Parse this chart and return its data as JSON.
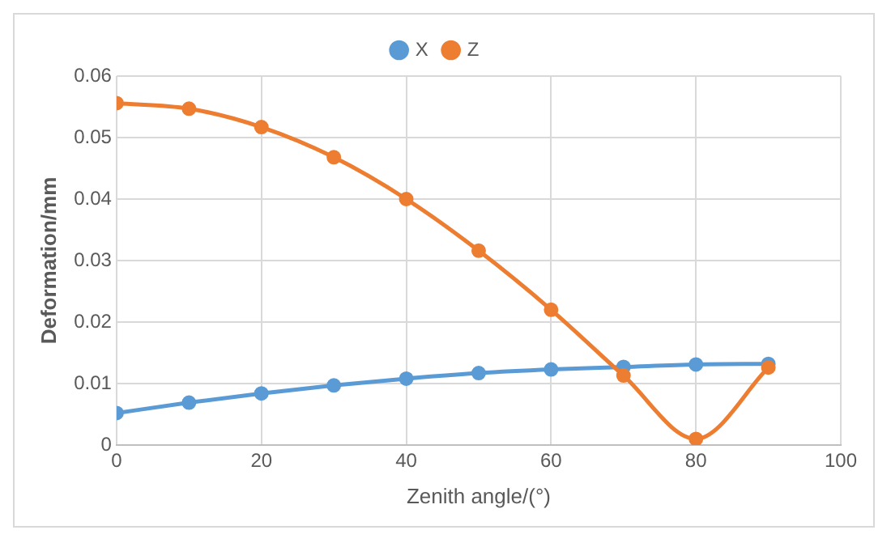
{
  "chart_data": {
    "type": "line",
    "xlabel": "Zenith angle/(°)",
    "ylabel": "Deformation/mm",
    "x": [
      0,
      10,
      20,
      30,
      40,
      50,
      60,
      70,
      80,
      90
    ],
    "series": [
      {
        "name": "X",
        "color": "#5b9bd5",
        "values": [
          0.0052,
          0.0069,
          0.0084,
          0.0097,
          0.0108,
          0.0117,
          0.0123,
          0.0127,
          0.0131,
          0.0132
        ]
      },
      {
        "name": "Z",
        "color": "#ed7d31",
        "values": [
          0.0556,
          0.0547,
          0.0517,
          0.0468,
          0.04,
          0.0316,
          0.022,
          0.0113,
          0.001,
          0.0126
        ]
      }
    ],
    "xlim": [
      0,
      100
    ],
    "xticks": [
      0,
      20,
      40,
      60,
      80,
      100
    ],
    "ylim": [
      0,
      0.06
    ],
    "yticks": [
      0,
      0.01,
      0.02,
      0.03,
      0.04,
      0.05,
      0.06
    ],
    "grid": true,
    "legend": "top",
    "marker": "circle",
    "line_style": "solid"
  }
}
